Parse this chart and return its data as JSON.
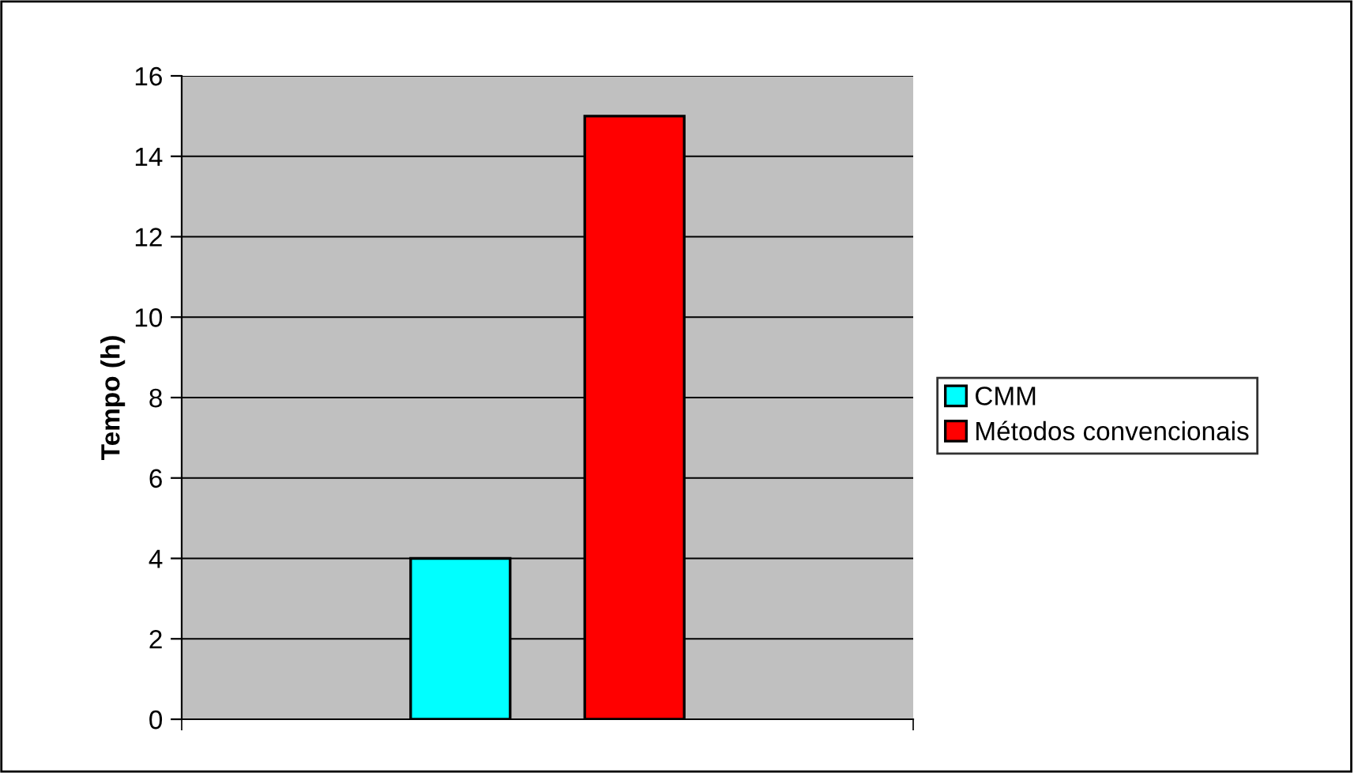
{
  "chart_data": {
    "type": "bar",
    "ylabel": "Tempo (h)",
    "categories": [
      null
    ],
    "series": [
      {
        "name": "CMM",
        "color": "#00ffff",
        "values": [
          4
        ]
      },
      {
        "name": "Métodos convencionais",
        "color": "#ff0000",
        "values": [
          15
        ]
      }
    ],
    "ylim": [
      0,
      16
    ],
    "yticks": [
      0,
      2,
      4,
      6,
      8,
      10,
      12,
      14,
      16
    ],
    "grid": "y",
    "legend": "right"
  }
}
